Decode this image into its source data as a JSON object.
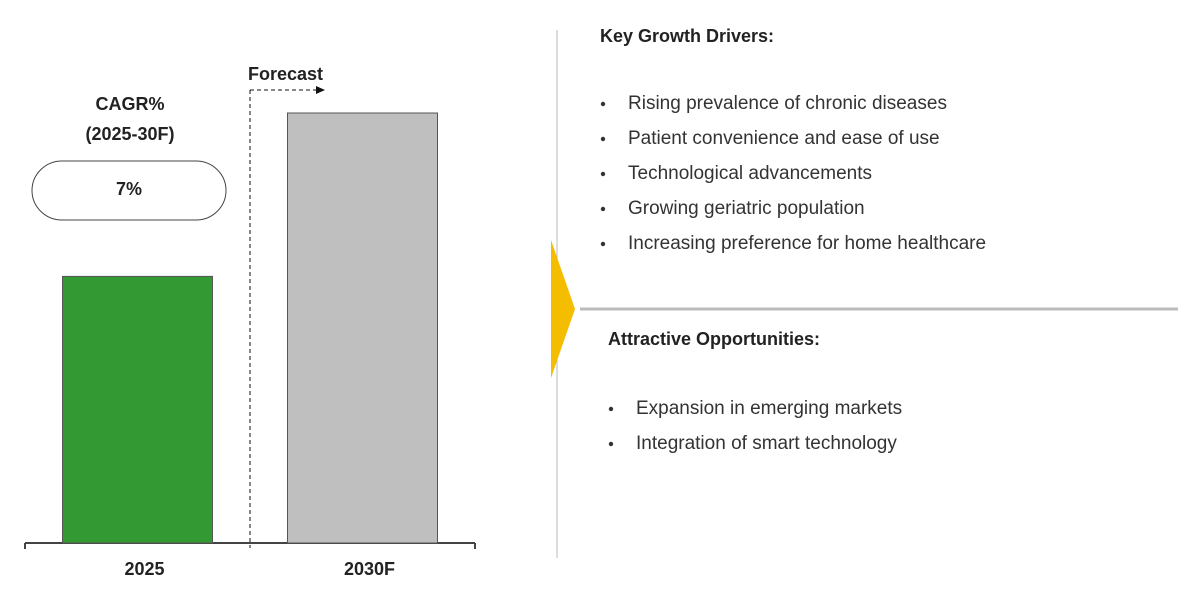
{
  "chart_data": {
    "type": "bar",
    "categories": [
      "2025",
      "2030F"
    ],
    "values": [
      62,
      100
    ],
    "colors": [
      "#339933",
      "#bfbfbf"
    ],
    "ylim": [
      0,
      100
    ],
    "annotations": {
      "forecast": "Forecast",
      "cagr_title": [
        "CAGR%",
        "(2025-30F)"
      ],
      "cagr_value": "7%"
    }
  },
  "panels": [
    {
      "title": "Key Growth Drivers:",
      "items": [
        "Rising prevalence of chronic diseases",
        "Patient convenience and ease of use",
        "Technological advancements",
        "Growing geriatric population",
        "Increasing preference for home healthcare"
      ]
    },
    {
      "title": "Attractive Opportunities:",
      "items": [
        "Expansion in emerging markets",
        "Integration of smart technology"
      ]
    }
  ]
}
